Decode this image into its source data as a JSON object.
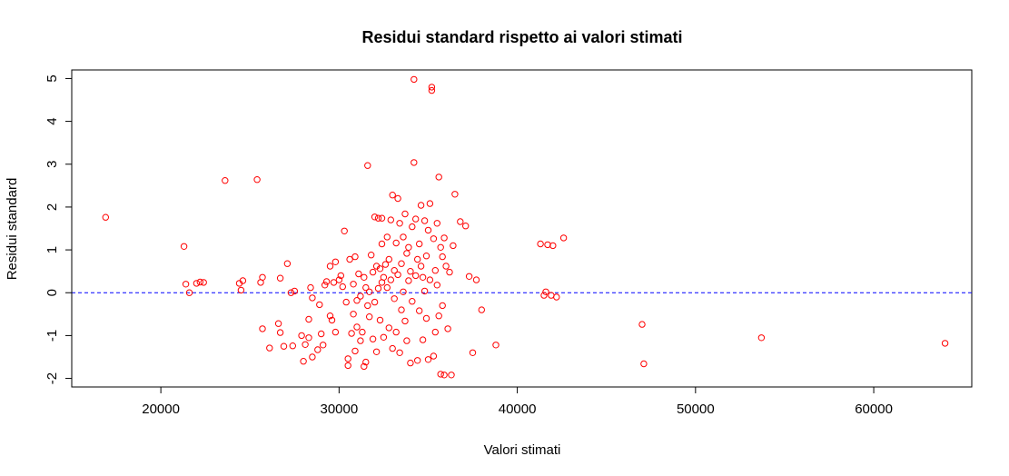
{
  "chart_data": {
    "type": "scatter",
    "title": "Residui standard rispetto ai valori stimati",
    "xlabel": "Valori stimati",
    "ylabel": "Residui standard",
    "xlim": [
      15000,
      65500
    ],
    "ylim": [
      -2.2,
      5.2
    ],
    "xticks": [
      20000,
      30000,
      40000,
      50000,
      60000
    ],
    "yticks": [
      -2,
      -1,
      0,
      1,
      2,
      3,
      4,
      5
    ],
    "reference_line": {
      "y": 0,
      "style": "dashed",
      "color": "#0000ff"
    },
    "point_color": "#ff0000",
    "grid": false,
    "points": [
      [
        16900,
        1.76
      ],
      [
        21300,
        1.08
      ],
      [
        21400,
        0.2
      ],
      [
        21600,
        0.0
      ],
      [
        22000,
        0.22
      ],
      [
        22200,
        0.25
      ],
      [
        22400,
        0.24
      ],
      [
        23600,
        2.62
      ],
      [
        24400,
        0.22
      ],
      [
        24500,
        0.06
      ],
      [
        24600,
        0.28
      ],
      [
        25400,
        2.64
      ],
      [
        25600,
        0.24
      ],
      [
        25700,
        0.36
      ],
      [
        25700,
        -0.84
      ],
      [
        26100,
        -1.29
      ],
      [
        26600,
        -0.72
      ],
      [
        26700,
        0.34
      ],
      [
        26700,
        -0.93
      ],
      [
        26900,
        -1.25
      ],
      [
        27100,
        0.68
      ],
      [
        27400,
        -1.24
      ],
      [
        27300,
        0.0
      ],
      [
        27500,
        0.04
      ],
      [
        27900,
        -1.0
      ],
      [
        28000,
        -1.6
      ],
      [
        28100,
        -1.21
      ],
      [
        28300,
        -0.62
      ],
      [
        28300,
        -1.05
      ],
      [
        28400,
        0.12
      ],
      [
        28500,
        -1.5
      ],
      [
        28500,
        -0.12
      ],
      [
        28800,
        -1.33
      ],
      [
        28900,
        -0.28
      ],
      [
        29000,
        -0.96
      ],
      [
        29100,
        -1.22
      ],
      [
        29200,
        0.18
      ],
      [
        29300,
        0.26
      ],
      [
        29500,
        0.62
      ],
      [
        29500,
        -0.54
      ],
      [
        29600,
        -0.64
      ],
      [
        29700,
        0.24
      ],
      [
        29800,
        0.72
      ],
      [
        29800,
        -0.92
      ],
      [
        30000,
        0.3
      ],
      [
        30100,
        0.4
      ],
      [
        30200,
        0.14
      ],
      [
        30300,
        1.44
      ],
      [
        30400,
        -0.22
      ],
      [
        30500,
        -1.54
      ],
      [
        30500,
        -1.7
      ],
      [
        30600,
        0.78
      ],
      [
        30700,
        -0.95
      ],
      [
        30800,
        -0.5
      ],
      [
        30800,
        0.2
      ],
      [
        30900,
        0.84
      ],
      [
        30900,
        -1.36
      ],
      [
        31000,
        -0.18
      ],
      [
        31000,
        -0.8
      ],
      [
        31100,
        0.44
      ],
      [
        31200,
        -0.08
      ],
      [
        31200,
        -1.12
      ],
      [
        31300,
        -0.92
      ],
      [
        31400,
        -1.72
      ],
      [
        31400,
        0.36
      ],
      [
        31500,
        0.12
      ],
      [
        31500,
        -1.62
      ],
      [
        31600,
        2.97
      ],
      [
        31600,
        -0.3
      ],
      [
        31700,
        0.02
      ],
      [
        31700,
        -0.56
      ],
      [
        31800,
        0.88
      ],
      [
        31900,
        0.48
      ],
      [
        31900,
        -1.08
      ],
      [
        32000,
        1.77
      ],
      [
        32000,
        -0.22
      ],
      [
        32100,
        0.62
      ],
      [
        32100,
        -1.38
      ],
      [
        32200,
        1.74
      ],
      [
        32200,
        0.1
      ],
      [
        32300,
        0.56
      ],
      [
        32300,
        -0.64
      ],
      [
        32400,
        1.74
      ],
      [
        32400,
        0.24
      ],
      [
        32400,
        1.14
      ],
      [
        32500,
        -1.04
      ],
      [
        32500,
        0.36
      ],
      [
        32600,
        0.66
      ],
      [
        32700,
        1.3
      ],
      [
        32700,
        0.12
      ],
      [
        32800,
        -0.82
      ],
      [
        32800,
        0.78
      ],
      [
        32900,
        1.7
      ],
      [
        32900,
        0.3
      ],
      [
        33000,
        2.28
      ],
      [
        33000,
        -1.3
      ],
      [
        33100,
        0.52
      ],
      [
        33100,
        -0.14
      ],
      [
        33200,
        1.16
      ],
      [
        33200,
        -0.92
      ],
      [
        33300,
        2.2
      ],
      [
        33300,
        0.42
      ],
      [
        33400,
        1.62
      ],
      [
        33400,
        -1.4
      ],
      [
        33500,
        0.68
      ],
      [
        33500,
        -0.4
      ],
      [
        33600,
        1.3
      ],
      [
        33600,
        0.02
      ],
      [
        33700,
        1.84
      ],
      [
        33700,
        -0.66
      ],
      [
        33800,
        0.92
      ],
      [
        33800,
        -1.12
      ],
      [
        33900,
        1.06
      ],
      [
        33900,
        0.28
      ],
      [
        34000,
        -1.64
      ],
      [
        34000,
        0.5
      ],
      [
        34100,
        1.54
      ],
      [
        34100,
        -0.2
      ],
      [
        34200,
        4.98
      ],
      [
        34200,
        3.04
      ],
      [
        34300,
        1.72
      ],
      [
        34300,
        0.4
      ],
      [
        34400,
        0.78
      ],
      [
        34400,
        -1.58
      ],
      [
        34500,
        1.14
      ],
      [
        34500,
        -0.42
      ],
      [
        34600,
        2.04
      ],
      [
        34600,
        0.62
      ],
      [
        34700,
        0.36
      ],
      [
        34700,
        -1.1
      ],
      [
        34800,
        1.68
      ],
      [
        34800,
        0.04
      ],
      [
        34900,
        0.86
      ],
      [
        34900,
        -0.6
      ],
      [
        35000,
        1.46
      ],
      [
        35000,
        -1.56
      ],
      [
        35100,
        2.08
      ],
      [
        35100,
        0.3
      ],
      [
        35200,
        4.8
      ],
      [
        35200,
        4.72
      ],
      [
        35300,
        1.26
      ],
      [
        35300,
        -1.48
      ],
      [
        35400,
        0.52
      ],
      [
        35400,
        -0.92
      ],
      [
        35500,
        1.62
      ],
      [
        35500,
        0.18
      ],
      [
        35600,
        2.7
      ],
      [
        35600,
        -0.54
      ],
      [
        35700,
        1.06
      ],
      [
        35700,
        -1.9
      ],
      [
        35800,
        0.84
      ],
      [
        35800,
        -0.3
      ],
      [
        35900,
        1.28
      ],
      [
        35900,
        -1.92
      ],
      [
        36000,
        0.62
      ],
      [
        36100,
        -0.84
      ],
      [
        36200,
        0.48
      ],
      [
        36300,
        -1.92
      ],
      [
        36400,
        1.1
      ],
      [
        36500,
        2.3
      ],
      [
        36800,
        1.66
      ],
      [
        37100,
        1.56
      ],
      [
        37300,
        0.38
      ],
      [
        37500,
        -1.4
      ],
      [
        37700,
        0.3
      ],
      [
        38000,
        -0.4
      ],
      [
        38800,
        -1.22
      ],
      [
        41300,
        1.14
      ],
      [
        41500,
        -0.06
      ],
      [
        41600,
        0.02
      ],
      [
        41700,
        1.12
      ],
      [
        41900,
        -0.06
      ],
      [
        42000,
        1.1
      ],
      [
        42200,
        -0.1
      ],
      [
        42600,
        1.28
      ],
      [
        47000,
        -0.74
      ],
      [
        47100,
        -1.66
      ],
      [
        53700,
        -1.05
      ],
      [
        64000,
        -1.18
      ]
    ]
  }
}
